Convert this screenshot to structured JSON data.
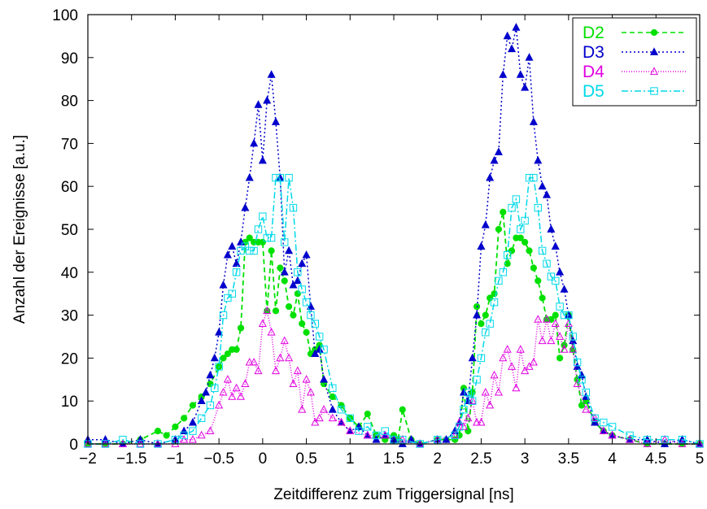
{
  "chart_data": {
    "type": "line",
    "title": "",
    "xlabel": "Zeitdifferenz zum Triggersignal [ns]",
    "ylabel": "Anzahl der Ereignisse [a.u.]",
    "xlim": [
      -2,
      5
    ],
    "ylim": [
      0,
      100
    ],
    "x_ticks": [
      -2,
      -1.5,
      -1,
      -0.5,
      0,
      0.5,
      1,
      1.5,
      2,
      2.5,
      3,
      3.5,
      4,
      4.5,
      5
    ],
    "x_tick_labels": [
      "−2",
      "−1.5",
      "−1",
      "−0.5",
      "0",
      "0.5",
      "1",
      "1.5",
      "2",
      "2.5",
      "3",
      "3.5",
      "4",
      "4.5",
      "5"
    ],
    "y_ticks": [
      0,
      10,
      20,
      30,
      40,
      50,
      60,
      70,
      80,
      90,
      100
    ],
    "y_tick_labels": [
      "0",
      "10",
      "20",
      "30",
      "40",
      "50",
      "60",
      "70",
      "80",
      "90",
      "100"
    ],
    "grid": false,
    "legend_position": "top-right",
    "series": [
      {
        "name": "D2",
        "color": "#00e000",
        "dash": "6,4",
        "marker": "circle-filled",
        "x": [
          -2,
          -1.8,
          -1.6,
          -1.4,
          -1.2,
          -1.1,
          -1.0,
          -0.9,
          -0.8,
          -0.7,
          -0.6,
          -0.5,
          -0.45,
          -0.4,
          -0.35,
          -0.3,
          -0.25,
          -0.2,
          -0.15,
          -0.1,
          -0.05,
          0,
          0.05,
          0.1,
          0.15,
          0.2,
          0.25,
          0.3,
          0.35,
          0.4,
          0.45,
          0.5,
          0.55,
          0.6,
          0.65,
          0.7,
          0.8,
          0.9,
          1.0,
          1.1,
          1.2,
          1.3,
          1.4,
          1.5,
          1.55,
          1.6,
          1.7,
          1.8,
          2.0,
          2.1,
          2.2,
          2.25,
          2.3,
          2.35,
          2.4,
          2.45,
          2.5,
          2.55,
          2.6,
          2.65,
          2.7,
          2.75,
          2.8,
          2.85,
          2.9,
          2.95,
          3.0,
          3.05,
          3.1,
          3.15,
          3.2,
          3.25,
          3.3,
          3.35,
          3.4,
          3.45,
          3.5,
          3.55,
          3.6,
          3.65,
          3.7,
          3.8,
          3.9,
          4.0,
          4.2,
          4.4,
          4.6,
          4.8,
          5.0
        ],
        "values": [
          0,
          0,
          0,
          1,
          3,
          2,
          4,
          6,
          9,
          11,
          14,
          18,
          20,
          21,
          22,
          22,
          27,
          47,
          48,
          47,
          47,
          47,
          31,
          45,
          31,
          41,
          38,
          32,
          30,
          35,
          28,
          26,
          21,
          22,
          23,
          14,
          11,
          9,
          6,
          4,
          7,
          2,
          1,
          2,
          1,
          8,
          1,
          0,
          1,
          1,
          1,
          2,
          13,
          3,
          12,
          32,
          28,
          30,
          34,
          35,
          50,
          54,
          42,
          45,
          48,
          48,
          47,
          45,
          41,
          38,
          34,
          29,
          29,
          30,
          20,
          23,
          30,
          22,
          15,
          9,
          10,
          5,
          3,
          2,
          1,
          0,
          0,
          0,
          0
        ]
      },
      {
        "name": "D3",
        "color": "#0000cc",
        "dash": "2,3",
        "marker": "triangle-filled",
        "x": [
          -2,
          -1.8,
          -1.6,
          -1.4,
          -1.2,
          -1.0,
          -0.9,
          -0.8,
          -0.7,
          -0.65,
          -0.6,
          -0.55,
          -0.5,
          -0.45,
          -0.4,
          -0.35,
          -0.3,
          -0.25,
          -0.2,
          -0.15,
          -0.1,
          -0.05,
          0,
          0.05,
          0.1,
          0.15,
          0.2,
          0.25,
          0.3,
          0.35,
          0.4,
          0.45,
          0.5,
          0.55,
          0.6,
          0.65,
          0.7,
          0.8,
          0.9,
          1.0,
          1.1,
          1.2,
          1.3,
          1.4,
          1.5,
          1.6,
          1.7,
          1.8,
          2.0,
          2.1,
          2.2,
          2.25,
          2.3,
          2.35,
          2.4,
          2.45,
          2.5,
          2.55,
          2.6,
          2.65,
          2.7,
          2.75,
          2.8,
          2.85,
          2.9,
          2.95,
          3.0,
          3.05,
          3.1,
          3.15,
          3.2,
          3.25,
          3.3,
          3.35,
          3.4,
          3.45,
          3.5,
          3.55,
          3.6,
          3.65,
          3.7,
          3.8,
          3.9,
          4.0,
          4.2,
          4.4,
          4.6,
          4.8,
          5.0
        ],
        "values": [
          1,
          1,
          0,
          1,
          0,
          1,
          3,
          5,
          10,
          12,
          16,
          20,
          26,
          37,
          44,
          46,
          42,
          47,
          55,
          62,
          70,
          79,
          66,
          80,
          86,
          75,
          62,
          40,
          45,
          37,
          38,
          42,
          44,
          32,
          21,
          22,
          15,
          8,
          5,
          3,
          4,
          2,
          1,
          2,
          1,
          0,
          1,
          0,
          1,
          1,
          3,
          5,
          12,
          10,
          20,
          30,
          46,
          51,
          62,
          66,
          68,
          86,
          95,
          92,
          97,
          86,
          83,
          90,
          75,
          66,
          60,
          58,
          50,
          46,
          40,
          36,
          30,
          24,
          18,
          16,
          11,
          5,
          3,
          2,
          1,
          1,
          0,
          1,
          0
        ]
      },
      {
        "name": "D4",
        "color": "#e000e0",
        "dash": "1,2",
        "marker": "triangle-open",
        "x": [
          -2,
          -1.8,
          -1.6,
          -1.4,
          -1.2,
          -1.0,
          -0.9,
          -0.8,
          -0.7,
          -0.6,
          -0.5,
          -0.45,
          -0.4,
          -0.35,
          -0.3,
          -0.25,
          -0.2,
          -0.15,
          -0.1,
          -0.05,
          0,
          0.05,
          0.1,
          0.15,
          0.2,
          0.25,
          0.3,
          0.35,
          0.4,
          0.45,
          0.5,
          0.55,
          0.6,
          0.65,
          0.7,
          0.8,
          0.9,
          1.0,
          1.2,
          1.4,
          1.6,
          1.8,
          2.0,
          2.2,
          2.25,
          2.3,
          2.35,
          2.4,
          2.45,
          2.5,
          2.55,
          2.6,
          2.65,
          2.7,
          2.75,
          2.8,
          2.85,
          2.9,
          2.95,
          3.0,
          3.05,
          3.1,
          3.15,
          3.2,
          3.25,
          3.3,
          3.35,
          3.4,
          3.45,
          3.5,
          3.55,
          3.6,
          3.7,
          3.8,
          3.9,
          4.0,
          4.2,
          4.4,
          4.6,
          4.8,
          5.0
        ],
        "values": [
          0,
          0,
          0,
          0,
          0,
          0,
          1,
          1,
          2,
          3,
          9,
          12,
          15,
          11,
          13,
          11,
          14,
          19,
          19,
          17,
          28,
          31,
          26,
          17,
          20,
          24,
          20,
          14,
          17,
          8,
          15,
          12,
          5,
          6,
          8,
          6,
          5,
          3,
          2,
          2,
          1,
          0,
          1,
          2,
          5,
          4,
          6,
          10,
          5,
          5,
          12,
          9,
          16,
          12,
          20,
          22,
          18,
          13,
          22,
          17,
          18,
          19,
          29,
          24,
          29,
          24,
          28,
          25,
          22,
          28,
          22,
          14,
          8,
          6,
          3,
          2,
          1,
          0,
          1,
          0,
          0
        ]
      },
      {
        "name": "D5",
        "color": "#00d8e8",
        "dash": "8,3,2,3",
        "marker": "square-open",
        "x": [
          -2,
          -1.8,
          -1.6,
          -1.4,
          -1.2,
          -1.0,
          -0.9,
          -0.8,
          -0.7,
          -0.6,
          -0.55,
          -0.5,
          -0.45,
          -0.4,
          -0.35,
          -0.3,
          -0.25,
          -0.2,
          -0.15,
          -0.1,
          -0.05,
          0,
          0.05,
          0.1,
          0.15,
          0.2,
          0.25,
          0.3,
          0.35,
          0.4,
          0.45,
          0.5,
          0.55,
          0.6,
          0.65,
          0.7,
          0.8,
          0.9,
          1.0,
          1.1,
          1.2,
          1.3,
          1.4,
          1.5,
          1.6,
          1.8,
          2.0,
          2.2,
          2.25,
          2.3,
          2.35,
          2.4,
          2.45,
          2.5,
          2.55,
          2.6,
          2.65,
          2.7,
          2.75,
          2.8,
          2.85,
          2.9,
          2.95,
          3.0,
          3.05,
          3.1,
          3.15,
          3.2,
          3.25,
          3.3,
          3.35,
          3.4,
          3.45,
          3.5,
          3.55,
          3.6,
          3.65,
          3.7,
          3.8,
          3.9,
          4.0,
          4.2,
          4.4,
          4.6,
          4.8,
          5.0
        ],
        "values": [
          0,
          0,
          1,
          0,
          0,
          1,
          2,
          3,
          6,
          9,
          13,
          18,
          30,
          34,
          35,
          40,
          45,
          46,
          45,
          45,
          50,
          53,
          48,
          48,
          62,
          62,
          47,
          62,
          55,
          40,
          36,
          33,
          30,
          28,
          25,
          22,
          13,
          8,
          6,
          3,
          4,
          2,
          3,
          1,
          1,
          0,
          1,
          2,
          4,
          8,
          12,
          10,
          15,
          20,
          26,
          28,
          33,
          38,
          40,
          44,
          55,
          57,
          50,
          52,
          62,
          62,
          55,
          45,
          42,
          39,
          38,
          32,
          30,
          30,
          25,
          19,
          15,
          12,
          6,
          5,
          4,
          2,
          1,
          1,
          1,
          0
        ]
      }
    ]
  }
}
